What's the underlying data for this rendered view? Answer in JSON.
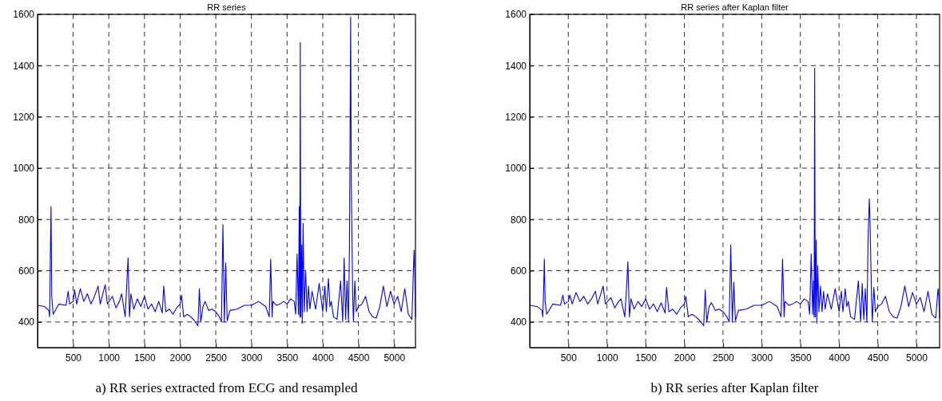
{
  "chart_data": [
    {
      "type": "line",
      "title": "RR series",
      "annotations": [
        "a) RR series extracted from ECG and resampled"
      ],
      "xlim": [
        1,
        5300
      ],
      "ylim": [
        300,
        1600
      ],
      "xticks": [
        500,
        1000,
        1500,
        2000,
        2500,
        3000,
        3500,
        4000,
        4500,
        5000
      ],
      "yticks": [
        400,
        600,
        800,
        1000,
        1200,
        1400,
        1600
      ],
      "grid": true,
      "line_style": "solid",
      "marker": "none",
      "series": [
        {
          "color": "#0000ff",
          "x": [
            1,
            100,
            160,
            170,
            180,
            190,
            200,
            220,
            260,
            300,
            400,
            430,
            450,
            500,
            520,
            550,
            600,
            650,
            700,
            750,
            800,
            850,
            880,
            950,
            980,
            1050,
            1100,
            1150,
            1180,
            1230,
            1250,
            1270,
            1290,
            1310,
            1350,
            1400,
            1450,
            1500,
            1550,
            1600,
            1650,
            1700,
            1750,
            1770,
            1800,
            1850,
            1900,
            1950,
            2000,
            2020,
            2050,
            2100,
            2150,
            2200,
            2250,
            2270,
            2290,
            2320,
            2350,
            2400,
            2450,
            2500,
            2550,
            2580,
            2600,
            2620,
            2640,
            2660,
            2700,
            2800,
            2900,
            3000,
            3100,
            3200,
            3250,
            3270,
            3290,
            3300,
            3350,
            3400,
            3450,
            3500,
            3550,
            3600,
            3620,
            3640,
            3660,
            3670,
            3678,
            3685,
            3692,
            3705,
            3712,
            3725,
            3740,
            3760,
            3780,
            3800,
            3820,
            3850,
            3900,
            3950,
            4000,
            4030,
            4050,
            4080,
            4100,
            4120,
            4150,
            4200,
            4250,
            4280,
            4300,
            4320,
            4340,
            4360,
            4375,
            4391,
            4400,
            4420,
            4430,
            4450,
            4470,
            4500,
            4550,
            4600,
            4650,
            4700,
            4750,
            4800,
            4850,
            4900,
            4950,
            5000,
            5050,
            5100,
            5150,
            5200,
            5250,
            5280,
            5290,
            5300
          ],
          "values": [
            465,
            460,
            445,
            420,
            650,
            850,
            500,
            430,
            450,
            470,
            465,
            520,
            470,
            480,
            525,
            470,
            530,
            480,
            510,
            470,
            500,
            540,
            470,
            545,
            470,
            500,
            455,
            480,
            510,
            420,
            535,
            650,
            420,
            510,
            450,
            490,
            460,
            500,
            450,
            470,
            440,
            480,
            435,
            540,
            440,
            450,
            430,
            455,
            470,
            505,
            420,
            430,
            420,
            405,
            385,
            530,
            400,
            460,
            480,
            445,
            450,
            440,
            420,
            400,
            780,
            400,
            630,
            405,
            445,
            450,
            465,
            465,
            480,
            460,
            420,
            645,
            420,
            480,
            465,
            470,
            480,
            470,
            490,
            480,
            430,
            665,
            430,
            850,
            420,
            1490,
            420,
            700,
            395,
            785,
            440,
            600,
            440,
            540,
            450,
            520,
            450,
            550,
            440,
            540,
            440,
            570,
            460,
            480,
            420,
            410,
            560,
            400,
            650,
            410,
            560,
            400,
            700,
            1590,
            940,
            500,
            400,
            560,
            440,
            460,
            470,
            500,
            440,
            420,
            415,
            460,
            540,
            460,
            520,
            470,
            500,
            440,
            530,
            430,
            410,
            680,
            600,
            420
          ]
        }
      ]
    },
    {
      "type": "line",
      "title": "RR series after Kaplan filter",
      "annotations": [
        "b) RR series after Kaplan filter"
      ],
      "xlim": [
        1,
        5300
      ],
      "ylim": [
        300,
        1600
      ],
      "xticks": [
        500,
        1000,
        1500,
        2000,
        2500,
        3000,
        3500,
        4000,
        4500,
        5000
      ],
      "yticks": [
        400,
        600,
        800,
        1000,
        1200,
        1400,
        1600
      ],
      "grid": true,
      "line_style": "solid",
      "marker": "none",
      "series": [
        {
          "color": "#0000ff",
          "x": [
            1,
            100,
            160,
            170,
            180,
            190,
            200,
            220,
            260,
            300,
            400,
            430,
            450,
            500,
            520,
            550,
            600,
            650,
            700,
            750,
            800,
            850,
            880,
            950,
            980,
            1050,
            1100,
            1150,
            1180,
            1230,
            1250,
            1270,
            1290,
            1310,
            1350,
            1400,
            1450,
            1500,
            1550,
            1600,
            1650,
            1700,
            1750,
            1770,
            1800,
            1850,
            1900,
            1950,
            2000,
            2020,
            2050,
            2100,
            2150,
            2200,
            2250,
            2270,
            2290,
            2320,
            2350,
            2400,
            2450,
            2500,
            2550,
            2580,
            2600,
            2620,
            2640,
            2660,
            2700,
            2800,
            2900,
            3000,
            3100,
            3200,
            3250,
            3270,
            3290,
            3300,
            3350,
            3400,
            3450,
            3500,
            3550,
            3600,
            3620,
            3640,
            3660,
            3670,
            3678,
            3685,
            3692,
            3705,
            3712,
            3725,
            3740,
            3760,
            3780,
            3800,
            3820,
            3850,
            3900,
            3950,
            4000,
            4030,
            4050,
            4080,
            4100,
            4120,
            4150,
            4200,
            4250,
            4280,
            4300,
            4320,
            4340,
            4360,
            4375,
            4391,
            4400,
            4420,
            4430,
            4450,
            4470,
            4500,
            4550,
            4600,
            4650,
            4700,
            4750,
            4800,
            4850,
            4900,
            4950,
            5000,
            5050,
            5100,
            5150,
            5200,
            5250,
            5280,
            5290,
            5300
          ],
          "values": [
            465,
            460,
            445,
            420,
            520,
            645,
            480,
            430,
            450,
            470,
            465,
            505,
            470,
            480,
            505,
            470,
            515,
            480,
            500,
            470,
            490,
            520,
            470,
            540,
            470,
            495,
            455,
            480,
            490,
            420,
            520,
            635,
            420,
            490,
            450,
            480,
            460,
            490,
            450,
            470,
            440,
            475,
            435,
            535,
            440,
            450,
            430,
            455,
            470,
            500,
            420,
            430,
            420,
            405,
            385,
            525,
            400,
            460,
            475,
            445,
            450,
            440,
            420,
            400,
            700,
            400,
            555,
            405,
            445,
            450,
            465,
            465,
            480,
            460,
            420,
            645,
            420,
            480,
            465,
            470,
            480,
            470,
            490,
            480,
            430,
            665,
            430,
            560,
            420,
            1390,
            420,
            720,
            395,
            620,
            440,
            540,
            440,
            520,
            450,
            510,
            450,
            530,
            440,
            520,
            440,
            530,
            460,
            480,
            420,
            410,
            560,
            400,
            550,
            410,
            530,
            400,
            720,
            880,
            800,
            500,
            400,
            535,
            440,
            460,
            470,
            500,
            440,
            420,
            415,
            460,
            540,
            460,
            515,
            470,
            495,
            440,
            520,
            430,
            415,
            530,
            500,
            415
          ]
        }
      ]
    }
  ]
}
